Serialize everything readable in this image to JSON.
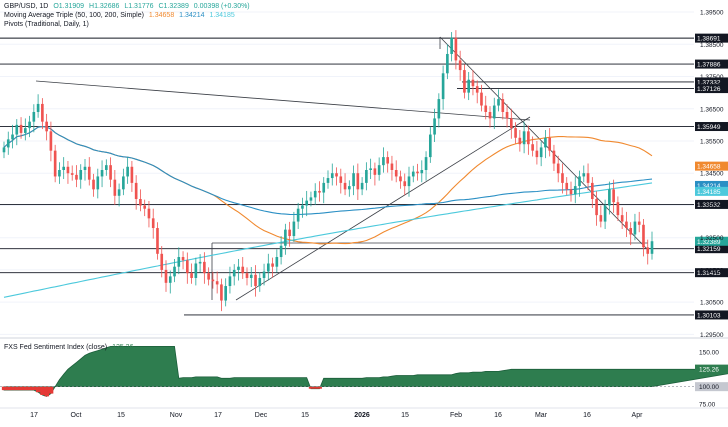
{
  "legend": {
    "symbol": "GBP/USD, 1D",
    "open": "O1.31909",
    "high": "H1.32686",
    "low": "L1.31776",
    "close": "C1.32389",
    "change": "0.00398 (+0.30%)",
    "ma_title": "Moving Average Triple (50, 100, 200, Simple)",
    "ma50": "1.34658",
    "ma100": "1.34214",
    "ma200": "1.34185",
    "pivots_title": "Pivots (Traditional, Daily, 1)"
  },
  "indicator": {
    "title": "FXS Fed Sentiment Index (close)",
    "value": "125.26",
    "ticks": [
      "150.00",
      "125.26",
      "100.00",
      "75.00"
    ]
  },
  "colors": {
    "up": "#26a69a",
    "down": "#ef5350",
    "ma50": "#f0892f",
    "ma100": "#2a8fc4",
    "ma200": "#4cc9dc",
    "sentiment_fill": "#2e7d4f",
    "sentiment_neg": "#e53935"
  },
  "chart_data": {
    "type": "candlestick",
    "y_range": [
      1.2945,
      1.3975
    ],
    "y_ticks": [
      "1.39500",
      "1.38500",
      "1.37500",
      "1.36500",
      "1.35500",
      "1.34500",
      "1.33500",
      "1.32500",
      "1.31500",
      "1.30500",
      "1.29500"
    ],
    "x_ticks": [
      "17",
      "Oct",
      "15",
      "Nov",
      "17",
      "Dec",
      "15",
      "2026",
      "15",
      "Feb",
      "16",
      "Mar",
      "16",
      "Apr"
    ],
    "pivot_levels": [
      {
        "label": "1.38691",
        "value": 1.38691
      },
      {
        "label": "1.37886",
        "value": 1.37886
      },
      {
        "label": "1.37332",
        "value": 1.37332
      },
      {
        "label": "1.37126",
        "value": 1.37126
      },
      {
        "label": "1.35949",
        "value": 1.35949
      },
      {
        "label": "1.33532",
        "value": 1.33532
      },
      {
        "label": "1.32159",
        "value": 1.32159
      },
      {
        "label": "1.31415",
        "value": 1.31415
      },
      {
        "label": "1.30103",
        "value": 1.30103
      }
    ],
    "price_labels": [
      {
        "label": "1.34658",
        "value": 1.34658,
        "series": "ma50"
      },
      {
        "label": "1.34214",
        "value": 1.34214,
        "series": "ma100"
      },
      {
        "label": "1.34185",
        "value": 1.34185,
        "series": "ma200"
      },
      {
        "label": "1.32389",
        "value": 1.32389,
        "series": "close"
      }
    ],
    "close": [
      1.353,
      1.3555,
      1.357,
      1.36,
      1.3575,
      1.359,
      1.361,
      1.364,
      1.3665,
      1.361,
      1.358,
      1.352,
      1.344,
      1.346,
      1.347,
      1.345,
      1.3445,
      1.343,
      1.346,
      1.347,
      1.343,
      1.34,
      1.344,
      1.346,
      1.3475,
      1.343,
      1.338,
      1.34,
      1.344,
      1.347,
      1.342,
      1.337,
      1.335,
      1.334,
      1.331,
      1.328,
      1.32,
      1.315,
      1.311,
      1.313,
      1.316,
      1.319,
      1.318,
      1.314,
      1.3125,
      1.317,
      1.3175,
      1.314,
      1.312,
      1.3115,
      1.3105,
      1.3055,
      1.31,
      1.313,
      1.315,
      1.316,
      1.314,
      1.3125,
      1.3135,
      1.31,
      1.3125,
      1.3145,
      1.317,
      1.316,
      1.319,
      1.3225,
      1.3275,
      1.3255,
      1.33,
      1.334,
      1.335,
      1.3365,
      1.3375,
      1.3395,
      1.339,
      1.342,
      1.3435,
      1.345,
      1.344,
      1.342,
      1.34,
      1.341,
      1.345,
      1.34,
      1.342,
      1.346,
      1.3465,
      1.3445,
      1.3475,
      1.35,
      1.348,
      1.346,
      1.344,
      1.3425,
      1.341,
      1.344,
      1.3455,
      1.345,
      1.346,
      1.35,
      1.357,
      1.362,
      1.368,
      1.376,
      1.382,
      1.387,
      1.38,
      1.377,
      1.37,
      1.374,
      1.372,
      1.37,
      1.366,
      1.364,
      1.362,
      1.366,
      1.368,
      1.364,
      1.362,
      1.359,
      1.356,
      1.354,
      1.358,
      1.354,
      1.352,
      1.35,
      1.353,
      1.356,
      1.352,
      1.348,
      1.345,
      1.342,
      1.34,
      1.3385,
      1.341,
      1.344,
      1.345,
      1.342,
      1.337,
      1.332,
      1.33,
      1.335,
      1.34,
      1.336,
      1.332,
      1.33,
      1.328,
      1.326,
      1.33,
      1.329,
      1.322,
      1.32,
      1.3239
    ],
    "sentiment": {
      "y_range": [
        75,
        160
      ],
      "values": [
        95,
        95,
        95,
        95,
        95,
        95,
        95,
        95,
        92,
        88,
        86,
        90,
        100,
        110,
        118,
        125,
        130,
        135,
        140,
        145,
        148,
        150,
        152,
        154,
        156,
        158,
        158,
        158,
        158,
        158,
        158,
        158,
        158,
        158,
        158,
        158,
        158,
        158,
        158,
        158,
        158,
        112,
        113,
        113,
        113,
        114,
        114,
        114,
        114,
        114,
        114,
        112,
        112,
        112,
        113,
        113,
        113,
        113,
        113,
        113,
        113,
        113,
        113,
        113,
        113,
        113,
        113,
        113,
        113,
        113,
        113,
        113,
        97,
        97,
        97,
        112,
        112,
        112,
        112,
        112,
        112,
        112,
        112,
        112,
        112,
        113,
        113,
        113,
        113,
        114,
        114,
        115,
        116,
        116,
        116,
        116,
        116,
        117,
        117,
        117,
        117,
        117,
        117,
        117,
        117,
        117,
        119,
        120,
        120,
        120,
        121,
        121,
        121,
        122,
        122,
        122,
        122,
        123,
        124,
        125,
        125,
        125,
        125,
        125,
        125,
        125,
        125,
        125,
        125,
        125,
        125,
        125,
        125,
        125,
        125,
        125,
        125,
        125,
        125,
        125,
        125,
        125,
        125,
        125,
        125,
        125,
        125,
        125,
        125,
        125,
        125,
        125,
        125,
        125,
        125,
        125,
        125,
        125,
        125,
        125,
        125,
        125,
        125,
        125,
        125,
        125,
        125,
        125,
        125,
        125,
        125,
        125,
        125,
        125,
        125,
        125,
        125
      ]
    }
  }
}
